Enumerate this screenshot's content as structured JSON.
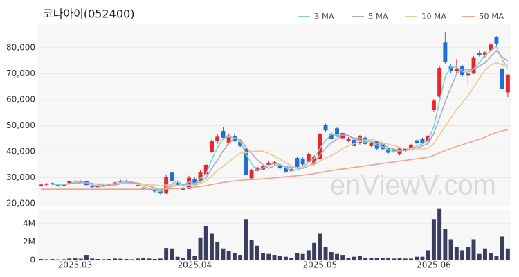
{
  "chart_data": {
    "type": "candlestick",
    "title": "코나아이(052400)",
    "watermark": "enViewV.com",
    "categories": [
      null,
      null,
      null,
      null,
      null,
      null,
      "2025.03",
      null,
      null,
      null,
      null,
      null,
      null,
      null,
      null,
      null,
      null,
      null,
      null,
      null,
      null,
      null,
      null,
      null,
      null,
      null,
      null,
      "2025.04",
      null,
      null,
      null,
      null,
      null,
      null,
      null,
      null,
      null,
      null,
      null,
      null,
      null,
      null,
      null,
      null,
      null,
      null,
      null,
      null,
      null,
      "2025.05",
      null,
      null,
      null,
      null,
      null,
      null,
      null,
      null,
      null,
      null,
      null,
      null,
      null,
      null,
      null,
      null,
      null,
      null,
      null,
      "2025.06",
      null,
      null,
      null,
      null,
      null,
      null,
      null,
      null,
      null,
      null,
      null,
      null,
      null
    ],
    "open": [
      27000,
      27400,
      27900,
      27200,
      27000,
      28000,
      28800,
      28600,
      28800,
      26800,
      26400,
      27000,
      26800,
      27600,
      28400,
      28800,
      28400,
      27200,
      26000,
      25600,
      25200,
      25000,
      24000,
      32000,
      28000,
      26000,
      25800,
      29600,
      28600,
      31400,
      39800,
      44200,
      48000,
      43200,
      46000,
      43800,
      41200,
      29800,
      32600,
      33200,
      35000,
      35400,
      35000,
      34000,
      33400,
      37600,
      37200,
      36000,
      35200,
      37200,
      50200,
      47000,
      49000,
      45200,
      44200,
      44600,
      43200,
      45400,
      42200,
      44000,
      43000,
      41200,
      41000,
      39000,
      41200,
      41600,
      44400,
      45000,
      44000,
      56000,
      61200,
      82000,
      72800,
      71000,
      72800,
      69200,
      70200,
      78000,
      77000,
      79000,
      84000,
      72000,
      62800
    ],
    "high": [
      27600,
      28000,
      28200,
      27600,
      27800,
      28800,
      29200,
      29000,
      29000,
      27400,
      27200,
      27600,
      27800,
      28400,
      29200,
      29200,
      28800,
      27600,
      26400,
      26000,
      25600,
      25400,
      31000,
      33000,
      28800,
      26400,
      30800,
      30200,
      32800,
      35600,
      44800,
      46800,
      49400,
      46800,
      47000,
      44600,
      42000,
      33400,
      34600,
      35200,
      36400,
      36400,
      35600,
      34400,
      33800,
      38200,
      38000,
      39600,
      38600,
      47800,
      50800,
      47600,
      49600,
      47600,
      45600,
      45200,
      46400,
      45800,
      43800,
      44400,
      43400,
      41600,
      41400,
      41600,
      41600,
      43000,
      44800,
      45400,
      46800,
      60200,
      72800,
      86000,
      73600,
      75600,
      73400,
      70400,
      76800,
      79000,
      78600,
      82000,
      84400,
      75600,
      69800
    ],
    "low": [
      26600,
      27000,
      27200,
      26600,
      26800,
      27800,
      28200,
      28000,
      27000,
      26200,
      26000,
      26500,
      26600,
      27200,
      28000,
      28200,
      27600,
      26600,
      25200,
      25000,
      24400,
      23600,
      23800,
      28600,
      26800,
      25000,
      25600,
      27000,
      28200,
      31000,
      39400,
      43000,
      44600,
      42800,
      43800,
      41800,
      30600,
      29400,
      32200,
      33000,
      34600,
      35000,
      33200,
      31800,
      32000,
      33600,
      34600,
      35600,
      34800,
      36800,
      47600,
      44600,
      45600,
      45000,
      43800,
      41600,
      42800,
      42600,
      41800,
      40800,
      40600,
      39000,
      39400,
      38600,
      40000,
      41200,
      42800,
      42800,
      43600,
      55200,
      60600,
      73600,
      70200,
      70000,
      68800,
      65800,
      69800,
      76600,
      76000,
      78400,
      80800,
      63400,
      61000
    ],
    "close": [
      27400,
      27600,
      27500,
      27000,
      27600,
      28600,
      28900,
      28200,
      27200,
      26400,
      27000,
      26800,
      27600,
      28200,
      28800,
      28400,
      27800,
      26800,
      25600,
      25400,
      24800,
      24000,
      30400,
      28800,
      27200,
      25400,
      30000,
      27400,
      32000,
      35000,
      44000,
      45800,
      45400,
      46200,
      44200,
      42200,
      31200,
      32800,
      34000,
      34600,
      35800,
      36000,
      33600,
      32200,
      32600,
      34200,
      35200,
      39000,
      38000,
      47000,
      48200,
      45000,
      46200,
      47200,
      45000,
      42200,
      46000,
      43000,
      43400,
      41200,
      41000,
      39600,
      40000,
      41200,
      40600,
      42600,
      43200,
      43400,
      46200,
      59600,
      72200,
      74600,
      71000,
      72000,
      69400,
      70000,
      76000,
      77200,
      78200,
      81200,
      81600,
      64000,
      69600
    ],
    "up_color": "#e8262f",
    "down_color": "#1f6fd6",
    "series": [
      {
        "name": "3 MA",
        "color": "#7fd3c8",
        "values": [
          null,
          null,
          27500,
          27400,
          27400,
          27700,
          28400,
          28600,
          28100,
          27300,
          26900,
          26700,
          27100,
          27500,
          28200,
          28500,
          28300,
          27700,
          26700,
          25900,
          25300,
          24700,
          26400,
          27700,
          28800,
          27100,
          27500,
          27600,
          29800,
          31500,
          37000,
          41600,
          45100,
          45800,
          45300,
          44200,
          39200,
          35400,
          32700,
          33800,
          34800,
          35500,
          35100,
          33900,
          32800,
          33000,
          34000,
          36100,
          37400,
          41300,
          44400,
          46700,
          46500,
          46100,
          46100,
          44800,
          44400,
          43700,
          44100,
          42500,
          41900,
          40600,
          40200,
          40300,
          40600,
          41500,
          42100,
          43100,
          44300,
          49700,
          59300,
          68800,
          72600,
          72500,
          70800,
          70500,
          71800,
          74400,
          77100,
          78900,
          80300,
          75600,
          71700
        ]
      },
      {
        "name": "5 MA",
        "color": "#b5a3c9",
        "values": [
          null,
          null,
          null,
          null,
          27400,
          27700,
          27900,
          28100,
          28100,
          27900,
          27500,
          27100,
          27000,
          27200,
          27700,
          28000,
          28200,
          28000,
          27500,
          26800,
          26100,
          25300,
          26000,
          26700,
          27000,
          27200,
          28400,
          27800,
          28400,
          30000,
          33700,
          36800,
          40400,
          43300,
          45100,
          44800,
          41800,
          39300,
          36900,
          35000,
          33700,
          34600,
          34800,
          34400,
          34000,
          33700,
          33600,
          34600,
          35800,
          38700,
          41500,
          43400,
          44900,
          46700,
          46300,
          45100,
          45300,
          44700,
          43900,
          43200,
          42900,
          41600,
          41000,
          40600,
          40500,
          40800,
          41500,
          42200,
          43200,
          47000,
          52900,
          59200,
          64700,
          69900,
          71800,
          71400,
          71700,
          72900,
          74200,
          76500,
          78800,
          76400,
          74900
        ]
      },
      {
        "name": "10 MA",
        "color": "#f0c98f",
        "values": [
          null,
          null,
          null,
          null,
          null,
          null,
          null,
          null,
          null,
          27700,
          27700,
          27600,
          27600,
          27700,
          27800,
          27800,
          27700,
          27600,
          27500,
          27400,
          27200,
          26900,
          27200,
          27300,
          27100,
          26800,
          27000,
          27100,
          27800,
          28800,
          30700,
          32900,
          34400,
          36100,
          37800,
          39500,
          39600,
          40100,
          40300,
          40200,
          39300,
          38300,
          37100,
          35700,
          34600,
          33800,
          34100,
          34700,
          35100,
          36400,
          37600,
          38500,
          39800,
          41300,
          42300,
          43100,
          43900,
          44300,
          44800,
          44200,
          43500,
          42900,
          42300,
          41700,
          41300,
          41400,
          41100,
          41100,
          41400,
          43200,
          46400,
          49900,
          53000,
          56100,
          58800,
          61500,
          64800,
          68200,
          71400,
          73300,
          74200,
          73400,
          73200
        ]
      },
      {
        "name": "50 MA",
        "color": "#f4a48c",
        "values": [
          25600,
          25600,
          25600,
          25600,
          25600,
          25600,
          25600,
          25600,
          25600,
          25600,
          25600,
          25600,
          25600,
          25600,
          25600,
          25600,
          25600,
          25600,
          25600,
          25600,
          25600,
          25600,
          25700,
          25800,
          25900,
          26000,
          26200,
          26400,
          26700,
          27000,
          27400,
          27800,
          28200,
          28500,
          28800,
          29000,
          29200,
          29300,
          29400,
          29600,
          29800,
          30000,
          30200,
          30400,
          30600,
          30800,
          31000,
          31300,
          31600,
          32000,
          32400,
          32800,
          33100,
          33400,
          33700,
          34000,
          34300,
          34600,
          34900,
          35200,
          35500,
          35800,
          36100,
          36400,
          36700,
          37000,
          37300,
          37600,
          37900,
          38600,
          39600,
          40500,
          41300,
          42000,
          42700,
          43400,
          44100,
          44800,
          45600,
          46600,
          47400,
          48000,
          48500
        ]
      }
    ],
    "ylim": [
      19000,
      89000
    ],
    "yticks": [
      {
        "value": 20000,
        "label": "20,000"
      },
      {
        "value": 30000,
        "label": "30,000"
      },
      {
        "value": 40000,
        "label": "40,000"
      },
      {
        "value": 50000,
        "label": "50,000"
      },
      {
        "value": 60000,
        "label": "60,000"
      },
      {
        "value": 70000,
        "label": "70,000"
      },
      {
        "value": 80000,
        "label": "80,000"
      }
    ],
    "grid": true,
    "volume": {
      "color": "#3b3d5f",
      "ylim": [
        0,
        5500000
      ],
      "yticks": [
        0,
        {
          "value": 2000000,
          "label": "2M"
        },
        {
          "value": 4000000,
          "label": "4M"
        }
      ],
      "values": [
        150000,
        120000,
        140000,
        100000,
        120000,
        200000,
        220000,
        180000,
        600000,
        200000,
        150000,
        120000,
        150000,
        200000,
        180000,
        150000,
        120000,
        200000,
        250000,
        200000,
        150000,
        200000,
        1350000,
        1300000,
        400000,
        250000,
        1200000,
        500000,
        2500000,
        3700000,
        2900000,
        2000000,
        1300000,
        1000000,
        800000,
        600000,
        4500000,
        2200000,
        1600000,
        800000,
        700000,
        600000,
        500000,
        400000,
        300000,
        800000,
        700000,
        1100000,
        1900000,
        2900000,
        1500000,
        900000,
        700000,
        600000,
        300000,
        400000,
        500000,
        300000,
        250000,
        300000,
        300000,
        250000,
        200000,
        250000,
        200000,
        200000,
        400000,
        400000,
        1100000,
        4500000,
        5600000,
        3400000,
        2300000,
        1500000,
        1100000,
        1500000,
        2300000,
        700000,
        1300000,
        800000,
        500000,
        2600000,
        1300000
      ]
    }
  }
}
